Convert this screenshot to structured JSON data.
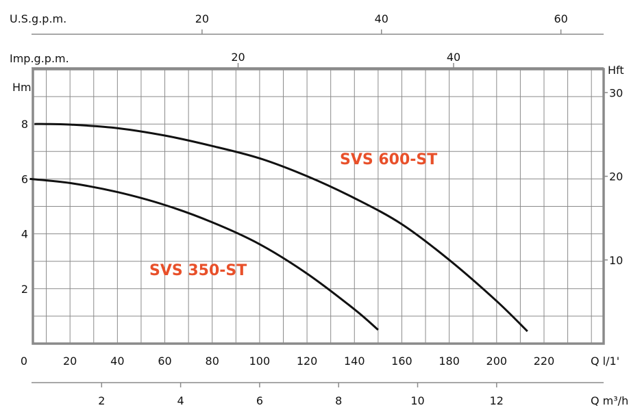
{
  "chart_data": {
    "type": "line",
    "series": [
      {
        "name": "SVS 600-ST",
        "x": [
          5,
          10,
          20,
          40,
          60,
          80,
          100,
          120,
          140,
          160,
          180,
          200,
          213
        ],
        "y": [
          8.0,
          8.0,
          7.98,
          7.85,
          7.58,
          7.2,
          6.75,
          6.1,
          5.3,
          4.35,
          3.05,
          1.55,
          0.45
        ]
      },
      {
        "name": "SVS 350-ST",
        "x": [
          3,
          20,
          40,
          60,
          80,
          100,
          120,
          140,
          150
        ],
        "y": [
          6.0,
          5.85,
          5.52,
          5.05,
          4.42,
          3.62,
          2.55,
          1.25,
          0.5
        ]
      }
    ],
    "x_axis": {
      "label": "Q l/1'",
      "ticks": [
        "0",
        "20",
        "40",
        "60",
        "80",
        "100",
        "120",
        "140",
        "160",
        "180",
        "200",
        "220"
      ],
      "range": [
        0,
        240
      ]
    },
    "y_axis": {
      "label": "Hm",
      "ticks": [
        "2",
        "4",
        "6",
        "8"
      ],
      "range": [
        0,
        10
      ]
    },
    "secondary_y_axis": {
      "label": "Hft",
      "ticks": [
        "10",
        "20",
        "30"
      ]
    },
    "x_axis_m3h": {
      "label": "Q m³/h",
      "ticks": [
        "2",
        "4",
        "6",
        "8",
        "10",
        "12"
      ]
    },
    "x_axis_imp": {
      "label": "Imp.g.p.m.",
      "ticks": [
        "20",
        "40"
      ]
    },
    "x_axis_us": {
      "label": "U.S.g.p.m.",
      "ticks": [
        "20",
        "40",
        "60"
      ]
    },
    "grid": true,
    "colors": {
      "series_label": "#e8502a",
      "curve": "#111111",
      "grid": "#8a8a8a"
    }
  }
}
